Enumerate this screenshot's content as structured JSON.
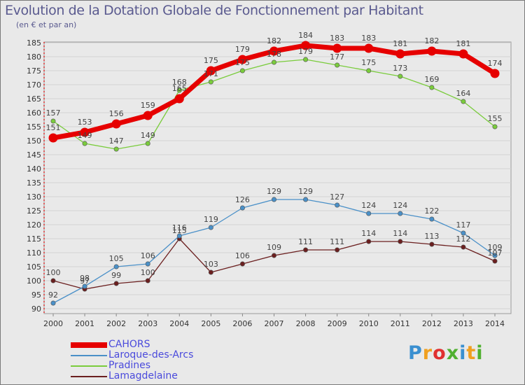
{
  "chart_data": {
    "type": "line",
    "title": "Evolution de la Dotation Globale de Fonctionnement par Habitant",
    "subtitle": "(en € et par an)",
    "xlabel": "",
    "ylabel": "",
    "x": [
      "2000",
      "2001",
      "2002",
      "2003",
      "2004",
      "2005",
      "2006",
      "2007",
      "2008",
      "2009",
      "2010",
      "2011",
      "2012",
      "2013",
      "2014"
    ],
    "ylim": [
      90,
      185
    ],
    "yticks": [
      90,
      95,
      100,
      105,
      110,
      115,
      120,
      125,
      130,
      135,
      140,
      145,
      150,
      155,
      160,
      165,
      170,
      175,
      180,
      185
    ],
    "grid": true,
    "legend_position": "bottom-left",
    "series": [
      {
        "name": "Lamagdelaine",
        "color": "#6b1f1f",
        "values": [
          100,
          97,
          99,
          100,
          115,
          103,
          106,
          109,
          111,
          111,
          114,
          114,
          113,
          112,
          107
        ]
      },
      {
        "name": "Laroque-des-Arcs",
        "color": "#4a90c8",
        "values": [
          92,
          98,
          105,
          106,
          116,
          119,
          126,
          129,
          129,
          127,
          124,
          124,
          122,
          117,
          109
        ]
      },
      {
        "name": "Pradines",
        "color": "#7acc3c",
        "values": [
          157,
          149,
          147,
          149,
          168,
          171,
          175,
          178,
          179,
          177,
          175,
          173,
          169,
          164,
          155
        ]
      },
      {
        "name": "CAHORS",
        "color": "#e60000",
        "values": [
          151,
          153,
          156,
          159,
          165,
          175,
          179,
          182,
          184,
          183,
          183,
          181,
          182,
          181,
          174
        ]
      }
    ]
  },
  "brand": {
    "letters": [
      "P",
      "r",
      "o",
      "x",
      "i",
      "t",
      "i"
    ],
    "colors": [
      "#3a8fd0",
      "#f0a020",
      "#e03030",
      "#50b030",
      "#3a8fd0",
      "#f0a020",
      "#50b030"
    ]
  }
}
